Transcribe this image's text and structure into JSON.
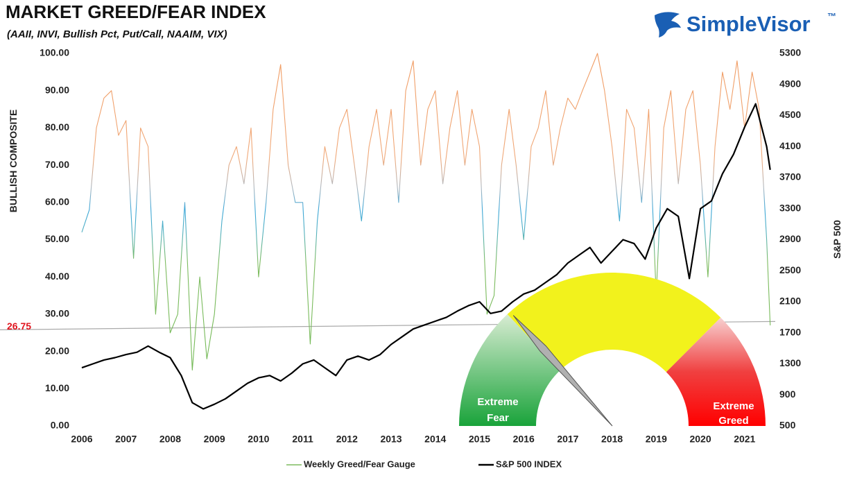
{
  "chart_data": {
    "type": "line",
    "title": "MARKET GREED/FEAR INDEX",
    "subtitle": "(AAII, INVI, Bullish Pct, Put/Call, NAAIM, VIX)",
    "brand": "SimpleVisor",
    "brand_mark": "™",
    "y_label": "BULLISH COMPOSITE",
    "y2_label": "S&P 500",
    "xlim": [
      2006,
      2021.6
    ],
    "xticks": [
      2006,
      2007,
      2008,
      2009,
      2010,
      2011,
      2012,
      2013,
      2014,
      2015,
      2016,
      2017,
      2018,
      2019,
      2020,
      2021
    ],
    "ylim": [
      0,
      100
    ],
    "yticks": [
      {
        "value": 0,
        "label": "0.00"
      },
      {
        "value": 10,
        "label": "10.00"
      },
      {
        "value": 20,
        "label": "20.00"
      },
      {
        "value": 30,
        "label": "30.00"
      },
      {
        "value": 40,
        "label": "40.00"
      },
      {
        "value": 50,
        "label": "50.00"
      },
      {
        "value": 60,
        "label": "60.00"
      },
      {
        "value": 70,
        "label": "70.00"
      },
      {
        "value": 80,
        "label": "80.00"
      },
      {
        "value": 90,
        "label": "90.00"
      },
      {
        "value": 100,
        "label": "100.00"
      }
    ],
    "y2lim": [
      500,
      5300
    ],
    "y2ticks": [
      500,
      900,
      1300,
      1700,
      2100,
      2500,
      2900,
      3300,
      3700,
      4100,
      4500,
      4900,
      5300
    ],
    "reference_line": {
      "value": 26.75,
      "color": "#e0141e"
    },
    "gauge": {
      "low_label": [
        "Extreme",
        "Fear"
      ],
      "high_label": [
        "Extreme",
        "Greed"
      ]
    },
    "series": [
      {
        "name": "Weekly Greed/Fear Gauge",
        "color": "#7dbb5f",
        "x": [
          2006.0,
          2006.17,
          2006.33,
          2006.5,
          2006.67,
          2006.83,
          2007.0,
          2007.17,
          2007.33,
          2007.5,
          2007.67,
          2007.83,
          2008.0,
          2008.17,
          2008.33,
          2008.5,
          2008.67,
          2008.83,
          2009.0,
          2009.17,
          2009.33,
          2009.5,
          2009.67,
          2009.83,
          2010.0,
          2010.17,
          2010.33,
          2010.5,
          2010.67,
          2010.83,
          2011.0,
          2011.17,
          2011.33,
          2011.5,
          2011.67,
          2011.83,
          2012.0,
          2012.17,
          2012.33,
          2012.5,
          2012.67,
          2012.83,
          2013.0,
          2013.17,
          2013.33,
          2013.5,
          2013.67,
          2013.83,
          2014.0,
          2014.17,
          2014.33,
          2014.5,
          2014.67,
          2014.83,
          2015.0,
          2015.17,
          2015.33,
          2015.5,
          2015.67,
          2015.83,
          2016.0,
          2016.17,
          2016.33,
          2016.5,
          2016.67,
          2016.83,
          2017.0,
          2017.17,
          2017.33,
          2017.5,
          2017.67,
          2017.83,
          2018.0,
          2018.17,
          2018.33,
          2018.5,
          2018.67,
          2018.83,
          2019.0,
          2019.17,
          2019.33,
          2019.5,
          2019.67,
          2019.83,
          2020.0,
          2020.17,
          2020.33,
          2020.5,
          2020.67,
          2020.83,
          2021.0,
          2021.17,
          2021.33,
          2021.5,
          2021.58
        ],
        "values": [
          52,
          58,
          80,
          88,
          90,
          78,
          82,
          45,
          80,
          75,
          30,
          55,
          25,
          30,
          60,
          15,
          40,
          18,
          30,
          55,
          70,
          75,
          65,
          80,
          40,
          60,
          85,
          97,
          70,
          60,
          60,
          22,
          55,
          75,
          65,
          80,
          85,
          70,
          55,
          75,
          85,
          70,
          85,
          60,
          90,
          98,
          70,
          85,
          90,
          65,
          80,
          90,
          70,
          85,
          75,
          30,
          35,
          70,
          85,
          70,
          50,
          75,
          80,
          90,
          70,
          80,
          88,
          85,
          90,
          95,
          100,
          90,
          75,
          55,
          85,
          80,
          60,
          85,
          35,
          80,
          90,
          65,
          85,
          90,
          70,
          40,
          75,
          95,
          85,
          98,
          80,
          95,
          85,
          50,
          27
        ]
      },
      {
        "name": "S&P 500 INDEX",
        "color": "#000000",
        "axis": "y2",
        "x": [
          2006.0,
          2006.25,
          2006.5,
          2006.75,
          2007.0,
          2007.25,
          2007.5,
          2007.75,
          2008.0,
          2008.25,
          2008.5,
          2008.75,
          2009.0,
          2009.25,
          2009.5,
          2009.75,
          2010.0,
          2010.25,
          2010.5,
          2010.75,
          2011.0,
          2011.25,
          2011.5,
          2011.75,
          2012.0,
          2012.25,
          2012.5,
          2012.75,
          2013.0,
          2013.25,
          2013.5,
          2013.75,
          2014.0,
          2014.25,
          2014.5,
          2014.75,
          2015.0,
          2015.25,
          2015.5,
          2015.75,
          2016.0,
          2016.25,
          2016.5,
          2016.75,
          2017.0,
          2017.25,
          2017.5,
          2017.75,
          2018.0,
          2018.25,
          2018.5,
          2018.75,
          2019.0,
          2019.25,
          2019.5,
          2019.75,
          2020.0,
          2020.25,
          2020.5,
          2020.75,
          2021.0,
          2021.25,
          2021.5,
          2021.58
        ],
        "values": [
          1250,
          1300,
          1350,
          1380,
          1420,
          1450,
          1530,
          1450,
          1380,
          1150,
          800,
          720,
          780,
          850,
          950,
          1050,
          1120,
          1150,
          1080,
          1180,
          1300,
          1350,
          1250,
          1150,
          1350,
          1400,
          1350,
          1420,
          1550,
          1650,
          1750,
          1800,
          1850,
          1900,
          1980,
          2050,
          2100,
          1950,
          1980,
          2100,
          2200,
          2250,
          2350,
          2450,
          2600,
          2700,
          2800,
          2600,
          2750,
          2900,
          2850,
          2650,
          3050,
          3300,
          3200,
          2400,
          3300,
          3400,
          3750,
          4000,
          4350,
          4650,
          4100,
          3800
        ]
      }
    ]
  }
}
